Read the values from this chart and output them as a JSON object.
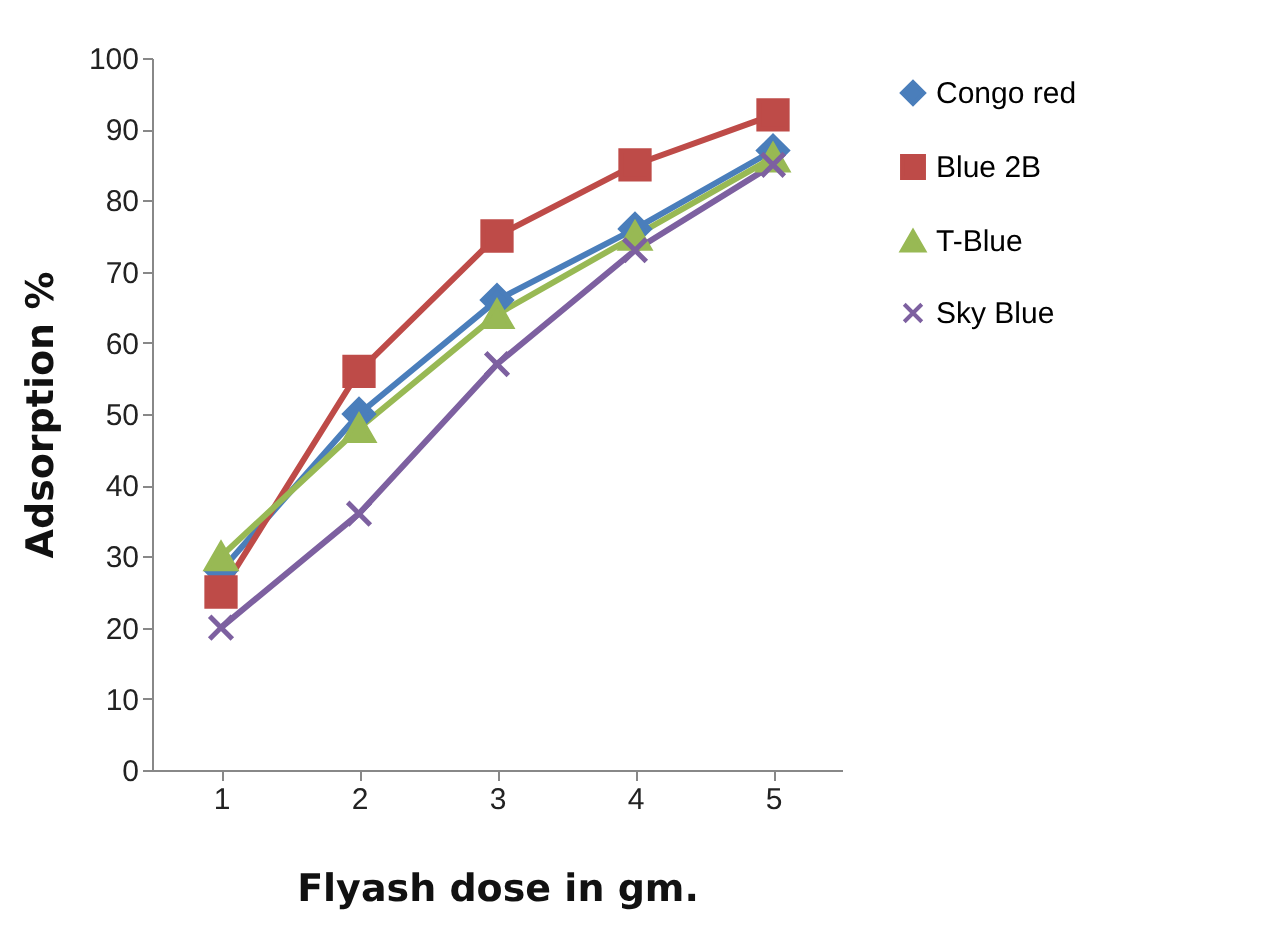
{
  "chart_data": {
    "type": "line",
    "xlabel": "Flyash dose in gm.",
    "ylabel": "Adsorption %",
    "categories": [
      "1",
      "2",
      "3",
      "4",
      "5"
    ],
    "series": [
      {
        "name": "Congo red",
        "color": "#4a7ebb",
        "marker": "diamond",
        "values": [
          28,
          50,
          66,
          76,
          87
        ]
      },
      {
        "name": "Blue 2B",
        "color": "#be4b48",
        "marker": "square",
        "values": [
          25,
          56,
          75,
          85,
          92
        ]
      },
      {
        "name": "T-Blue",
        "color": "#98b954",
        "marker": "triangle",
        "values": [
          30,
          48,
          64,
          75,
          86
        ]
      },
      {
        "name": "Sky Blue",
        "color": "#7d60a0",
        "marker": "cross",
        "values": [
          20,
          36,
          57,
          73,
          85
        ]
      }
    ],
    "ylim": [
      0,
      100
    ],
    "yticks": [
      0,
      10,
      20,
      30,
      40,
      50,
      60,
      70,
      80,
      90,
      100
    ],
    "grid": false,
    "legend": "right",
    "line_style": "solid"
  }
}
